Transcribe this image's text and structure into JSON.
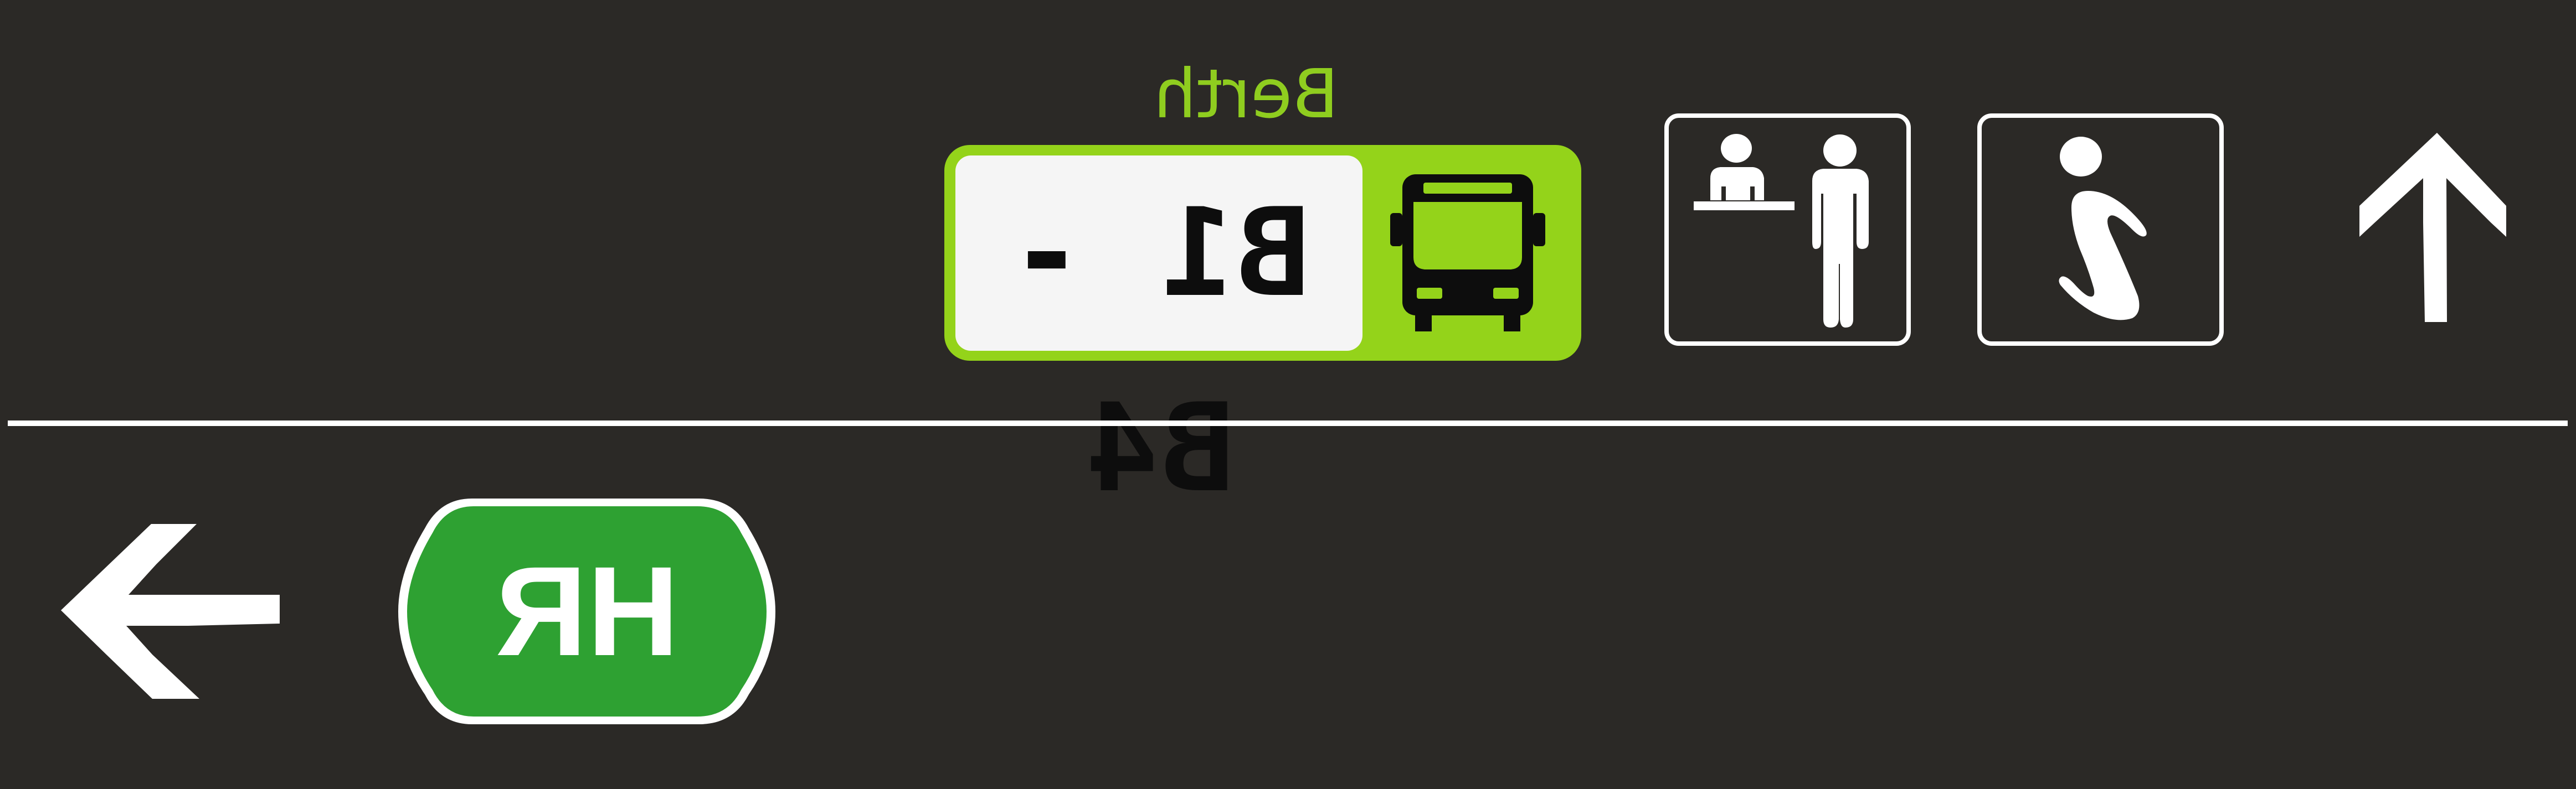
{
  "berth": {
    "caption": "Berth",
    "range": "B1 - B4"
  },
  "route_badge": {
    "code": "HR"
  },
  "icons": {
    "berth_icon": "bus-icon",
    "service_1": "reception-desk-icon",
    "service_2": "information-icon",
    "direction_top": "up-arrow-icon",
    "direction_bottom": "left-arrow-icon"
  },
  "colors": {
    "background": "#2b2926",
    "berth_green": "#94d31a",
    "route_green": "#2ea132",
    "foreground": "#ffffff"
  }
}
